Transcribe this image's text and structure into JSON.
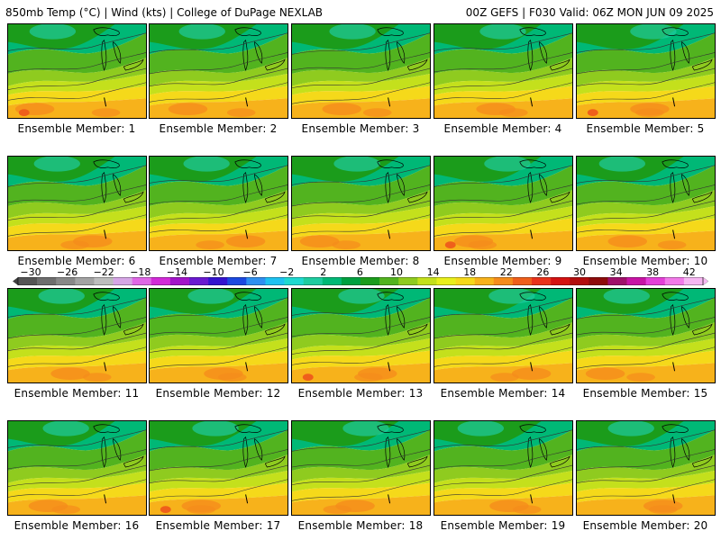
{
  "header": {
    "left_title": "850mb Temp (°C) | Wind (kts) | College of DuPage NEXLAB",
    "right_title": "00Z GEFS | F030 Valid: 06Z MON JUN 09 2025"
  },
  "colorbar": {
    "tick_labels": [
      "−30",
      "−26",
      "−22",
      "−18",
      "−14",
      "−10",
      "−6",
      "−2",
      "2",
      "6",
      "10",
      "14",
      "18",
      "22",
      "26",
      "30",
      "34",
      "38",
      "42"
    ],
    "colors": [
      "#555555",
      "#6e6e6e",
      "#888888",
      "#a3a3a3",
      "#bdbdbd",
      "#d6a6e6",
      "#e067e6",
      "#d22ad8",
      "#a314c9",
      "#6a1ad0",
      "#3413cf",
      "#1c49e0",
      "#2e8ff0",
      "#1ec1f0",
      "#1ed9d0",
      "#1ecca0",
      "#00b876",
      "#00a040",
      "#1b9c1b",
      "#52b31f",
      "#8fcb1f",
      "#c4e01c",
      "#e8ef1b",
      "#f5d91a",
      "#f7b21b",
      "#f58c1b",
      "#ef5f1b",
      "#e9321b",
      "#d41212",
      "#b30e0e",
      "#8e0c0c",
      "#a0106a",
      "#c814a5",
      "#e43fd8",
      "#f27ae9",
      "#f7b6f2"
    ]
  },
  "members": [
    {
      "label": "Ensemble Member: 1"
    },
    {
      "label": "Ensemble Member: 2"
    },
    {
      "label": "Ensemble Member: 3"
    },
    {
      "label": "Ensemble Member: 4"
    },
    {
      "label": "Ensemble Member: 5"
    },
    {
      "label": "Ensemble Member: 6"
    },
    {
      "label": "Ensemble Member: 7"
    },
    {
      "label": "Ensemble Member: 8"
    },
    {
      "label": "Ensemble Member: 9"
    },
    {
      "label": "Ensemble Member: 10"
    },
    {
      "label": "Ensemble Member: 11"
    },
    {
      "label": "Ensemble Member: 12"
    },
    {
      "label": "Ensemble Member: 13"
    },
    {
      "label": "Ensemble Member: 14"
    },
    {
      "label": "Ensemble Member: 15"
    },
    {
      "label": "Ensemble Member: 16"
    },
    {
      "label": "Ensemble Member: 17"
    },
    {
      "label": "Ensemble Member: 18"
    },
    {
      "label": "Ensemble Member: 19"
    },
    {
      "label": "Ensemble Member: 20"
    }
  ]
}
